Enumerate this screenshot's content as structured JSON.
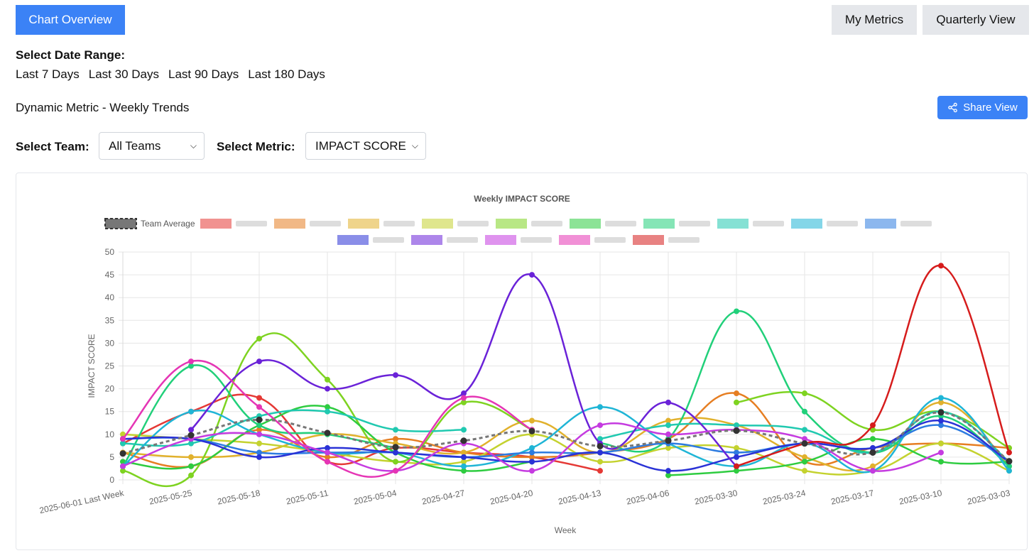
{
  "header": {
    "overview_label": "Chart Overview",
    "my_metrics_label": "My Metrics",
    "quarterly_label": "Quarterly View"
  },
  "date_range": {
    "title": "Select Date Range:",
    "options": [
      "Last 7 Days",
      "Last 30 Days",
      "Last 90 Days",
      "Last 180 Days"
    ]
  },
  "metric_title": "Dynamic Metric - Weekly Trends",
  "share": {
    "label": "Share View",
    "icon": "share-icon"
  },
  "filters": {
    "team_label": "Select Team:",
    "team_value": "All Teams",
    "metric_label": "Select Metric:",
    "metric_value": "IMPACT SCORE"
  },
  "chart_data": {
    "type": "line",
    "title": "Weekly IMPACT SCORE",
    "xlabel": "Week",
    "ylabel": "IMPACT SCORE",
    "ylim": [
      0,
      50
    ],
    "ytick_step": 5,
    "grid": true,
    "legend_position": "top",
    "categories": [
      "2025-06-01 Last Week",
      "2025-05-25",
      "2025-05-18",
      "2025-05-11",
      "2025-05-04",
      "2025-04-27",
      "2025-04-20",
      "2025-04-13",
      "2025-04-06",
      "2025-03-30",
      "2025-03-24",
      "2025-03-17",
      "2025-03-10",
      "2025-03-03"
    ],
    "series": [
      {
        "name": "Team Average",
        "color": "#666666",
        "dashed": true,
        "values": [
          5.8,
          9.8,
          13.2,
          10.3,
          7.2,
          8.6,
          10.7,
          7.4,
          8.6,
          10.8,
          8.0,
          6.0,
          14.8,
          4.1
        ]
      },
      {
        "name": "",
        "color": "#e53935",
        "values": [
          8,
          15,
          18,
          4,
          7,
          6,
          5,
          2,
          null,
          null,
          null,
          null,
          null,
          null
        ]
      },
      {
        "name": "",
        "color": "#e67e22",
        "values": [
          6,
          3,
          11,
          5,
          9,
          6,
          5,
          6,
          9,
          19,
          4,
          7,
          8,
          7
        ]
      },
      {
        "name": "",
        "color": "#e1b12c",
        "values": [
          6,
          5,
          6,
          10,
          8,
          6,
          13,
          6,
          13,
          12,
          5,
          3,
          17,
          3
        ]
      },
      {
        "name": "",
        "color": "#c4d22f",
        "values": [
          10,
          9,
          8,
          6,
          4,
          4,
          10,
          4,
          7,
          7,
          2,
          2,
          8,
          2
        ]
      },
      {
        "name": "",
        "color": "#7ed321",
        "values": [
          2,
          1,
          31,
          22,
          4,
          17,
          11,
          null,
          null,
          17,
          19,
          11,
          15,
          7
        ]
      },
      {
        "name": "",
        "color": "#2ecc40",
        "values": [
          4,
          3,
          12,
          16,
          6,
          2,
          4,
          null,
          1,
          2,
          4,
          9,
          4,
          4
        ]
      },
      {
        "name": "",
        "color": "#21d07a",
        "values": [
          3,
          25,
          12,
          10,
          7,
          null,
          null,
          8,
          9,
          37,
          15,
          6,
          14,
          3
        ]
      },
      {
        "name": "",
        "color": "#20c9b0",
        "values": [
          8,
          8,
          14,
          15,
          11,
          11,
          null,
          9,
          12,
          12,
          11,
          6,
          15,
          4
        ]
      },
      {
        "name": "",
        "color": "#1fb5d6",
        "values": [
          3,
          15,
          10,
          6,
          6,
          3,
          7,
          16,
          8,
          3,
          8,
          2,
          18,
          2
        ]
      },
      {
        "name": "",
        "color": "#2d7be0",
        "values": [
          9,
          9,
          6,
          6,
          6,
          5,
          6,
          6,
          8,
          6,
          8,
          7,
          12,
          4
        ]
      },
      {
        "name": "",
        "color": "#2a32d6",
        "values": [
          9,
          9,
          5,
          7,
          6,
          5,
          4,
          6,
          2,
          5,
          8,
          7,
          13,
          4
        ]
      },
      {
        "name": "",
        "color": "#6a22d8",
        "values": [
          null,
          11,
          26,
          20,
          23,
          19,
          45,
          8,
          17,
          3,
          null,
          null,
          null,
          null
        ]
      },
      {
        "name": "",
        "color": "#c53be0",
        "values": [
          3,
          9,
          10,
          6,
          2,
          8,
          2,
          12,
          10,
          11,
          9,
          2,
          6,
          null
        ]
      },
      {
        "name": "",
        "color": "#e535b5",
        "values": [
          9,
          26,
          16,
          4,
          2,
          18,
          11,
          null,
          null,
          null,
          null,
          null,
          null,
          null
        ]
      },
      {
        "name": "",
        "color": "#d61c1c",
        "values": [
          null,
          null,
          null,
          null,
          null,
          null,
          null,
          null,
          null,
          3,
          8,
          12,
          47,
          6
        ]
      }
    ]
  }
}
